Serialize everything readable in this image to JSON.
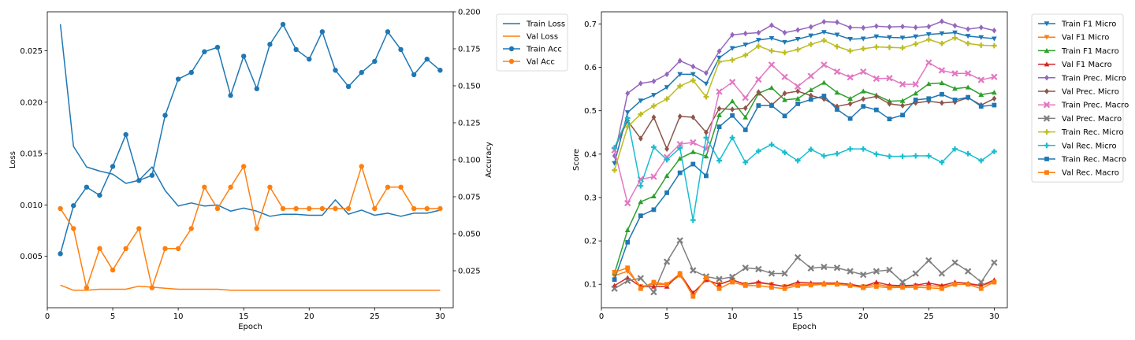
{
  "chart_data": [
    {
      "type": "line",
      "xlabel": "Epoch",
      "ylabel": "Loss",
      "y2label": "Accuracy",
      "x": [
        1,
        2,
        3,
        4,
        5,
        6,
        7,
        8,
        9,
        10,
        11,
        12,
        13,
        14,
        15,
        16,
        17,
        18,
        19,
        20,
        21,
        22,
        23,
        24,
        25,
        26,
        27,
        28,
        29,
        30
      ],
      "xlim": [
        0.0,
        31.0
      ],
      "xticks": [
        0,
        5,
        10,
        15,
        20,
        25,
        30
      ],
      "ylim": [
        0.0,
        0.0288
      ],
      "yticks": [
        0.005,
        0.01,
        0.015,
        0.02,
        0.025
      ],
      "ytick_labels": [
        "0.005",
        "0.010",
        "0.015",
        "0.020",
        "0.025"
      ],
      "y2lim": [
        0.0,
        0.2
      ],
      "y2ticks": [
        0.025,
        0.05,
        0.075,
        0.1,
        0.125,
        0.15,
        0.175,
        0.2
      ],
      "y2tick_labels": [
        "0.025",
        "0.050",
        "0.075",
        "0.100",
        "0.125",
        "0.150",
        "0.175",
        "0.200"
      ],
      "grid": false,
      "legend_position": "outside-right",
      "series": [
        {
          "name": "Train Loss",
          "axis": "left",
          "color": "#1f77b4",
          "marker": "none",
          "values": [
            0.0276,
            0.0157,
            0.0137,
            0.0133,
            0.013,
            0.0121,
            0.0124,
            0.0137,
            0.0114,
            0.0099,
            0.0102,
            0.0099,
            0.01,
            0.0094,
            0.0097,
            0.0094,
            0.0089,
            0.0091,
            0.0091,
            0.009,
            0.009,
            0.0105,
            0.0091,
            0.0095,
            0.009,
            0.0092,
            0.0089,
            0.0092,
            0.0092,
            0.0095
          ]
        },
        {
          "name": "Val Loss",
          "axis": "left",
          "color": "#ff7f0e",
          "marker": "none",
          "values": [
            0.0022,
            0.0017,
            0.0017,
            0.0018,
            0.0018,
            0.0018,
            0.0021,
            0.002,
            0.0019,
            0.0018,
            0.0018,
            0.0018,
            0.0018,
            0.0017,
            0.0017,
            0.0017,
            0.0017,
            0.0017,
            0.0017,
            0.0017,
            0.0017,
            0.0017,
            0.0017,
            0.0017,
            0.0017,
            0.0017,
            0.0017,
            0.0017,
            0.0017,
            0.0017
          ]
        },
        {
          "name": "Train Acc",
          "axis": "right",
          "color": "#1f77b4",
          "marker": "circle",
          "values": [
            0.0365,
            0.069,
            0.0815,
            0.076,
            0.0955,
            0.117,
            0.086,
            0.0895,
            0.13,
            0.1545,
            0.159,
            0.173,
            0.176,
            0.1435,
            0.17,
            0.148,
            0.178,
            0.1915,
            0.1745,
            0.168,
            0.1865,
            0.1605,
            0.1495,
            0.159,
            0.1665,
            0.1865,
            0.1745,
            0.1575,
            0.168,
            0.1605
          ]
        },
        {
          "name": "Val Acc",
          "axis": "right",
          "color": "#ff7f0e",
          "marker": "circle",
          "values": [
            0.067,
            0.0535,
            0.0135,
            0.04,
            0.0255,
            0.04,
            0.0535,
            0.0135,
            0.04,
            0.04,
            0.0535,
            0.0815,
            0.067,
            0.0815,
            0.0955,
            0.0535,
            0.0815,
            0.067,
            0.067,
            0.067,
            0.067,
            0.067,
            0.067,
            0.0955,
            0.067,
            0.0815,
            0.0815,
            0.067,
            0.067,
            0.067
          ]
        }
      ]
    },
    {
      "type": "line",
      "xlabel": "Epoch",
      "ylabel": "Score",
      "x": [
        1,
        2,
        3,
        4,
        5,
        6,
        7,
        8,
        9,
        10,
        11,
        12,
        13,
        14,
        15,
        16,
        17,
        18,
        19,
        20,
        21,
        22,
        23,
        24,
        25,
        26,
        27,
        28,
        29,
        30
      ],
      "xlim": [
        0.0,
        31.0
      ],
      "xticks": [
        0,
        5,
        10,
        15,
        20,
        25,
        30
      ],
      "ylim": [
        0.046,
        0.728
      ],
      "yticks": [
        0.1,
        0.2,
        0.3,
        0.4,
        0.5,
        0.6,
        0.7
      ],
      "ytick_labels": [
        "0.1",
        "0.2",
        "0.3",
        "0.4",
        "0.5",
        "0.6",
        "0.7"
      ],
      "grid": false,
      "legend_position": "outside-right",
      "series": [
        {
          "name": "Train F1 Micro",
          "color": "#1f77b4",
          "marker": "triangle-down",
          "values": [
            0.379,
            0.496,
            0.523,
            0.536,
            0.554,
            0.584,
            0.584,
            0.562,
            0.622,
            0.644,
            0.652,
            0.663,
            0.667,
            0.658,
            0.665,
            0.673,
            0.681,
            0.675,
            0.665,
            0.666,
            0.671,
            0.669,
            0.668,
            0.671,
            0.676,
            0.678,
            0.68,
            0.672,
            0.669,
            0.666
          ]
        },
        {
          "name": "Val F1 Micro",
          "color": "#ff7f0e",
          "marker": "triangle-down",
          "values": [
            0.12,
            0.13,
            0.095,
            0.1,
            0.1,
            0.12,
            0.08,
            0.11,
            0.1,
            0.11,
            0.1,
            0.103,
            0.1,
            0.095,
            0.1,
            0.1,
            0.1,
            0.1,
            0.097,
            0.095,
            0.1,
            0.095,
            0.095,
            0.097,
            0.097,
            0.095,
            0.1,
            0.1,
            0.097,
            0.105
          ]
        },
        {
          "name": "Train F1 Macro",
          "color": "#2ca02c",
          "marker": "triangle-up",
          "values": [
            0.125,
            0.225,
            0.29,
            0.303,
            0.35,
            0.39,
            0.405,
            0.395,
            0.49,
            0.522,
            0.485,
            0.54,
            0.553,
            0.525,
            0.528,
            0.548,
            0.565,
            0.542,
            0.528,
            0.545,
            0.536,
            0.522,
            0.523,
            0.54,
            0.562,
            0.564,
            0.551,
            0.554,
            0.537,
            0.542
          ]
        },
        {
          "name": "Val F1 Macro",
          "color": "#d62728",
          "marker": "triangle-up",
          "values": [
            0.097,
            0.115,
            0.095,
            0.095,
            0.095,
            0.125,
            0.08,
            0.11,
            0.1,
            0.11,
            0.1,
            0.105,
            0.1,
            0.095,
            0.105,
            0.103,
            0.103,
            0.103,
            0.1,
            0.095,
            0.105,
            0.098,
            0.097,
            0.098,
            0.103,
            0.097,
            0.105,
            0.102,
            0.097,
            0.11
          ]
        },
        {
          "name": "Train Prec. Micro",
          "color": "#9467bd",
          "marker": "diamond",
          "values": [
            0.396,
            0.54,
            0.563,
            0.568,
            0.584,
            0.615,
            0.602,
            0.587,
            0.637,
            0.675,
            0.678,
            0.68,
            0.697,
            0.68,
            0.686,
            0.693,
            0.705,
            0.704,
            0.692,
            0.691,
            0.695,
            0.693,
            0.694,
            0.692,
            0.694,
            0.706,
            0.696,
            0.688,
            0.692,
            0.685
          ]
        },
        {
          "name": "Val Prec. Micro",
          "color": "#8c564b",
          "marker": "diamond",
          "values": [
            0.413,
            0.477,
            0.436,
            0.485,
            0.412,
            0.487,
            0.485,
            0.45,
            0.505,
            0.503,
            0.506,
            0.543,
            0.513,
            0.54,
            0.545,
            0.535,
            0.527,
            0.51,
            0.516,
            0.527,
            0.533,
            0.516,
            0.512,
            0.518,
            0.522,
            0.518,
            0.52,
            0.53,
            0.513,
            0.528
          ]
        },
        {
          "name": "Train Prec. Macro",
          "color": "#e377c2",
          "marker": "x",
          "values": [
            0.409,
            0.287,
            0.342,
            0.348,
            0.393,
            0.423,
            0.427,
            0.412,
            0.544,
            0.566,
            0.53,
            0.572,
            0.606,
            0.578,
            0.556,
            0.58,
            0.606,
            0.59,
            0.577,
            0.59,
            0.574,
            0.575,
            0.561,
            0.561,
            0.611,
            0.593,
            0.586,
            0.586,
            0.571,
            0.578
          ]
        },
        {
          "name": "Val Prec. Macro",
          "color": "#7f7f7f",
          "marker": "x",
          "values": [
            0.09,
            0.108,
            0.114,
            0.082,
            0.152,
            0.201,
            0.132,
            0.118,
            0.112,
            0.117,
            0.138,
            0.135,
            0.125,
            0.125,
            0.162,
            0.137,
            0.14,
            0.138,
            0.13,
            0.122,
            0.13,
            0.133,
            0.105,
            0.125,
            0.155,
            0.125,
            0.15,
            0.13,
            0.105,
            0.15
          ]
        },
        {
          "name": "Train Rec. Micro",
          "color": "#bcbd22",
          "marker": "plus",
          "values": [
            0.363,
            0.463,
            0.492,
            0.511,
            0.527,
            0.557,
            0.57,
            0.532,
            0.613,
            0.617,
            0.628,
            0.649,
            0.638,
            0.634,
            0.641,
            0.653,
            0.662,
            0.648,
            0.638,
            0.643,
            0.647,
            0.646,
            0.645,
            0.654,
            0.664,
            0.655,
            0.668,
            0.655,
            0.651,
            0.65
          ]
        },
        {
          "name": "Val Rec. Micro",
          "color": "#17becf",
          "marker": "plus",
          "values": [
            0.415,
            0.483,
            0.327,
            0.416,
            0.387,
            0.414,
            0.248,
            0.438,
            0.385,
            0.438,
            0.381,
            0.407,
            0.422,
            0.404,
            0.385,
            0.411,
            0.396,
            0.401,
            0.412,
            0.412,
            0.4,
            0.395,
            0.395,
            0.396,
            0.396,
            0.381,
            0.412,
            0.401,
            0.385,
            0.406
          ]
        },
        {
          "name": "Train Rec. Macro",
          "color": "#1f77b4",
          "marker": "square",
          "values": [
            0.111,
            0.197,
            0.258,
            0.272,
            0.311,
            0.357,
            0.377,
            0.35,
            0.463,
            0.489,
            0.456,
            0.512,
            0.512,
            0.488,
            0.516,
            0.526,
            0.534,
            0.503,
            0.482,
            0.51,
            0.502,
            0.481,
            0.49,
            0.525,
            0.528,
            0.538,
            0.525,
            0.531,
            0.51,
            0.513
          ]
        },
        {
          "name": "Val Rec. Macro",
          "color": "#ff7f0e",
          "marker": "square",
          "values": [
            0.128,
            0.138,
            0.09,
            0.105,
            0.1,
            0.125,
            0.072,
            0.115,
            0.09,
            0.105,
            0.097,
            0.097,
            0.093,
            0.09,
            0.097,
            0.098,
            0.1,
            0.1,
            0.097,
            0.092,
            0.095,
            0.092,
            0.093,
            0.093,
            0.092,
            0.09,
            0.1,
            0.1,
            0.09,
            0.105
          ]
        }
      ]
    }
  ]
}
